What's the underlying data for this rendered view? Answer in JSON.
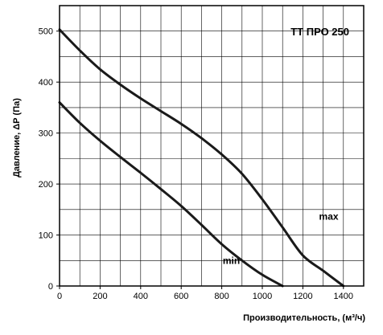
{
  "chart_data": {
    "type": "line",
    "title": "TT ПРО 250",
    "xlabel": "Производительность, (м³/ч)",
    "ylabel": "Давление, ΔР (Па)",
    "xlim": [
      0,
      1500
    ],
    "ylim": [
      0,
      550
    ],
    "x_ticks": [
      0,
      200,
      400,
      600,
      800,
      1000,
      1200,
      1400
    ],
    "y_ticks": [
      0,
      100,
      200,
      300,
      400,
      500
    ],
    "grid": true,
    "series": [
      {
        "name": "max",
        "points": [
          [
            0,
            503
          ],
          [
            100,
            462
          ],
          [
            200,
            425
          ],
          [
            300,
            395
          ],
          [
            400,
            368
          ],
          [
            500,
            343
          ],
          [
            600,
            318
          ],
          [
            700,
            290
          ],
          [
            800,
            258
          ],
          [
            900,
            220
          ],
          [
            1000,
            170
          ],
          [
            1100,
            115
          ],
          [
            1200,
            60
          ],
          [
            1300,
            30
          ],
          [
            1400,
            0
          ]
        ]
      },
      {
        "name": "min",
        "points": [
          [
            0,
            360
          ],
          [
            100,
            320
          ],
          [
            200,
            285
          ],
          [
            300,
            253
          ],
          [
            400,
            222
          ],
          [
            500,
            190
          ],
          [
            600,
            157
          ],
          [
            700,
            120
          ],
          [
            800,
            82
          ],
          [
            900,
            50
          ],
          [
            1000,
            22
          ],
          [
            1100,
            0
          ]
        ]
      }
    ],
    "series_labels": [
      {
        "name": "max",
        "at": [
          1280,
          130
        ]
      },
      {
        "name": "min",
        "at": [
          805,
          43
        ]
      }
    ]
  }
}
